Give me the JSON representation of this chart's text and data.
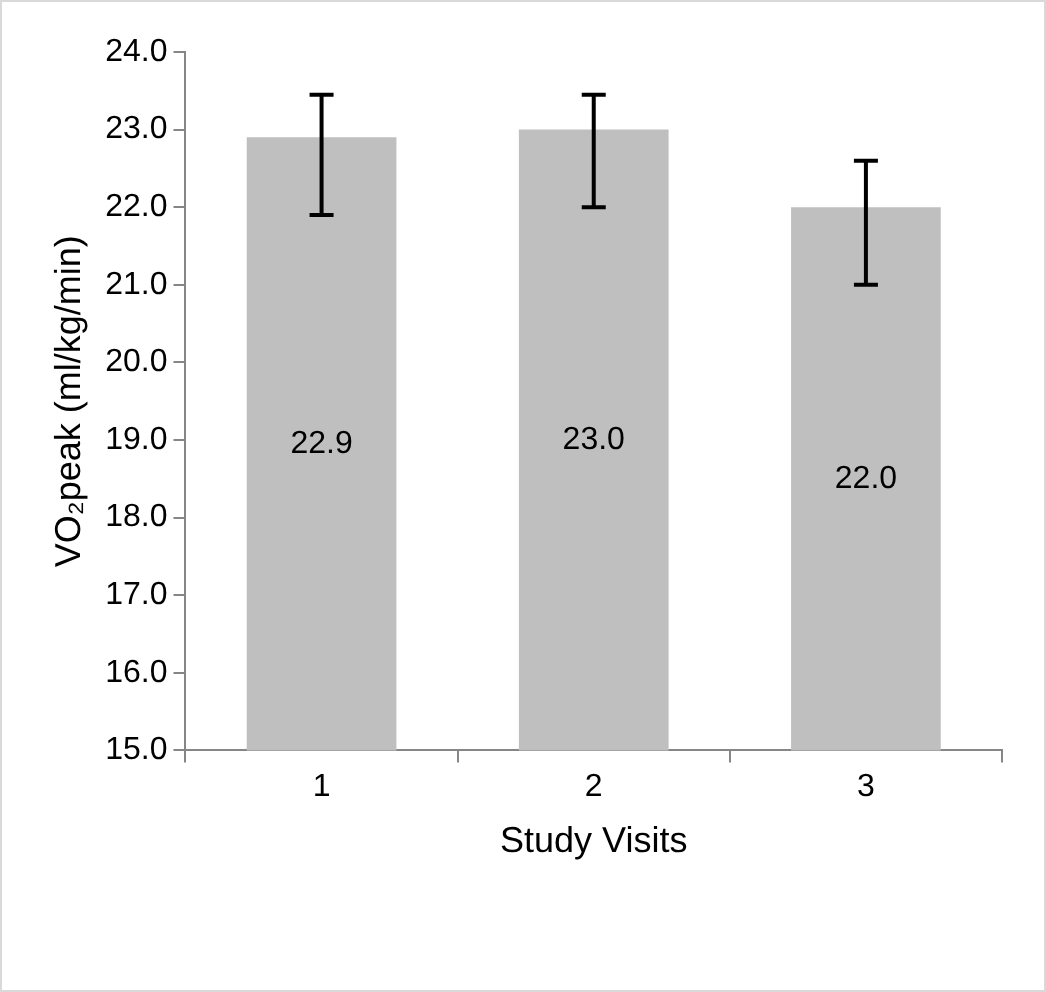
{
  "chart_data": {
    "type": "bar",
    "xlabel": "Study Visits",
    "ylabel": "VO₂peak (ml/kg/min)",
    "categories": [
      "1",
      "2",
      "3"
    ],
    "values": [
      22.9,
      23.0,
      22.0
    ],
    "errors": [
      [
        21.9,
        23.45
      ],
      [
        22.0,
        23.45
      ],
      [
        21.0,
        22.6
      ]
    ],
    "color": "#bfbfbf",
    "ylim": [
      15,
      24
    ],
    "yticks": [
      {
        "value": 15,
        "label": "15.0"
      },
      {
        "value": 16,
        "label": "16.0"
      },
      {
        "value": 17,
        "label": "17.0"
      },
      {
        "value": 18,
        "label": "18.0"
      },
      {
        "value": 19,
        "label": "19.0"
      },
      {
        "value": 20,
        "label": "20.0"
      },
      {
        "value": 21,
        "label": "21.0"
      },
      {
        "value": 22,
        "label": "22.0"
      },
      {
        "value": 23,
        "label": "23.0"
      },
      {
        "value": 24,
        "label": "24.0"
      }
    ],
    "value_labels": [
      "22.9",
      "23.0",
      "22.0"
    ],
    "grid": false,
    "legend": false
  }
}
